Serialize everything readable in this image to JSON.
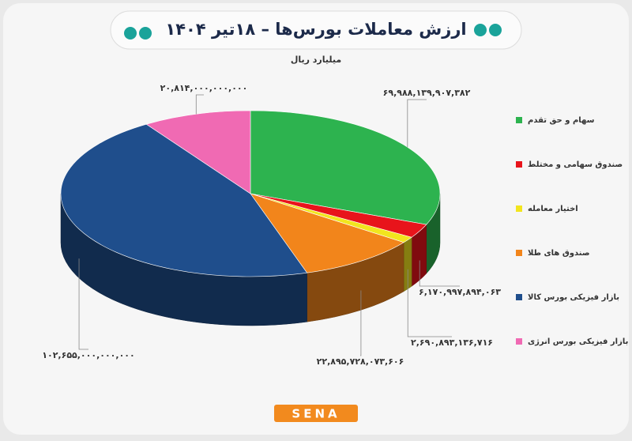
{
  "chart_data": {
    "type": "pie",
    "title": "ارزش معاملات بورس‌ها – ۱۸تیر ۱۴۰۴",
    "subtitle": "میلیارد ریال",
    "logo": "SENA",
    "categories": [
      "سهام و حق تقدم",
      "صندوق سهامی و مختلط",
      "اختیار معامله",
      "صندوق های طلا",
      "بازار فیزیکی بورس کالا",
      "بازار فیزیکی بورس انرژی"
    ],
    "values": [
      69988139907382,
      6170997894063,
      2690893136716,
      22895728073606,
      102655000000000,
      20814000000000
    ],
    "value_labels": [
      "۶۹,۹۸۸,۱۳۹,۹۰۷,۳۸۲",
      "۶,۱۷۰,۹۹۷,۸۹۴,۰۶۳",
      "۲,۶۹۰,۸۹۳,۱۳۶,۷۱۶",
      "۲۲,۸۹۵,۷۲۸,۰۷۳,۶۰۶",
      "۱۰۲,۶۵۵,۰۰۰,۰۰۰,۰۰۰",
      "۲۰,۸۱۴,۰۰۰,۰۰۰,۰۰۰"
    ],
    "colors": [
      "#2db34f",
      "#e8141b",
      "#f2e51e",
      "#f2851b",
      "#1f4e8c",
      "#f06ab3"
    ],
    "legend": "right"
  }
}
